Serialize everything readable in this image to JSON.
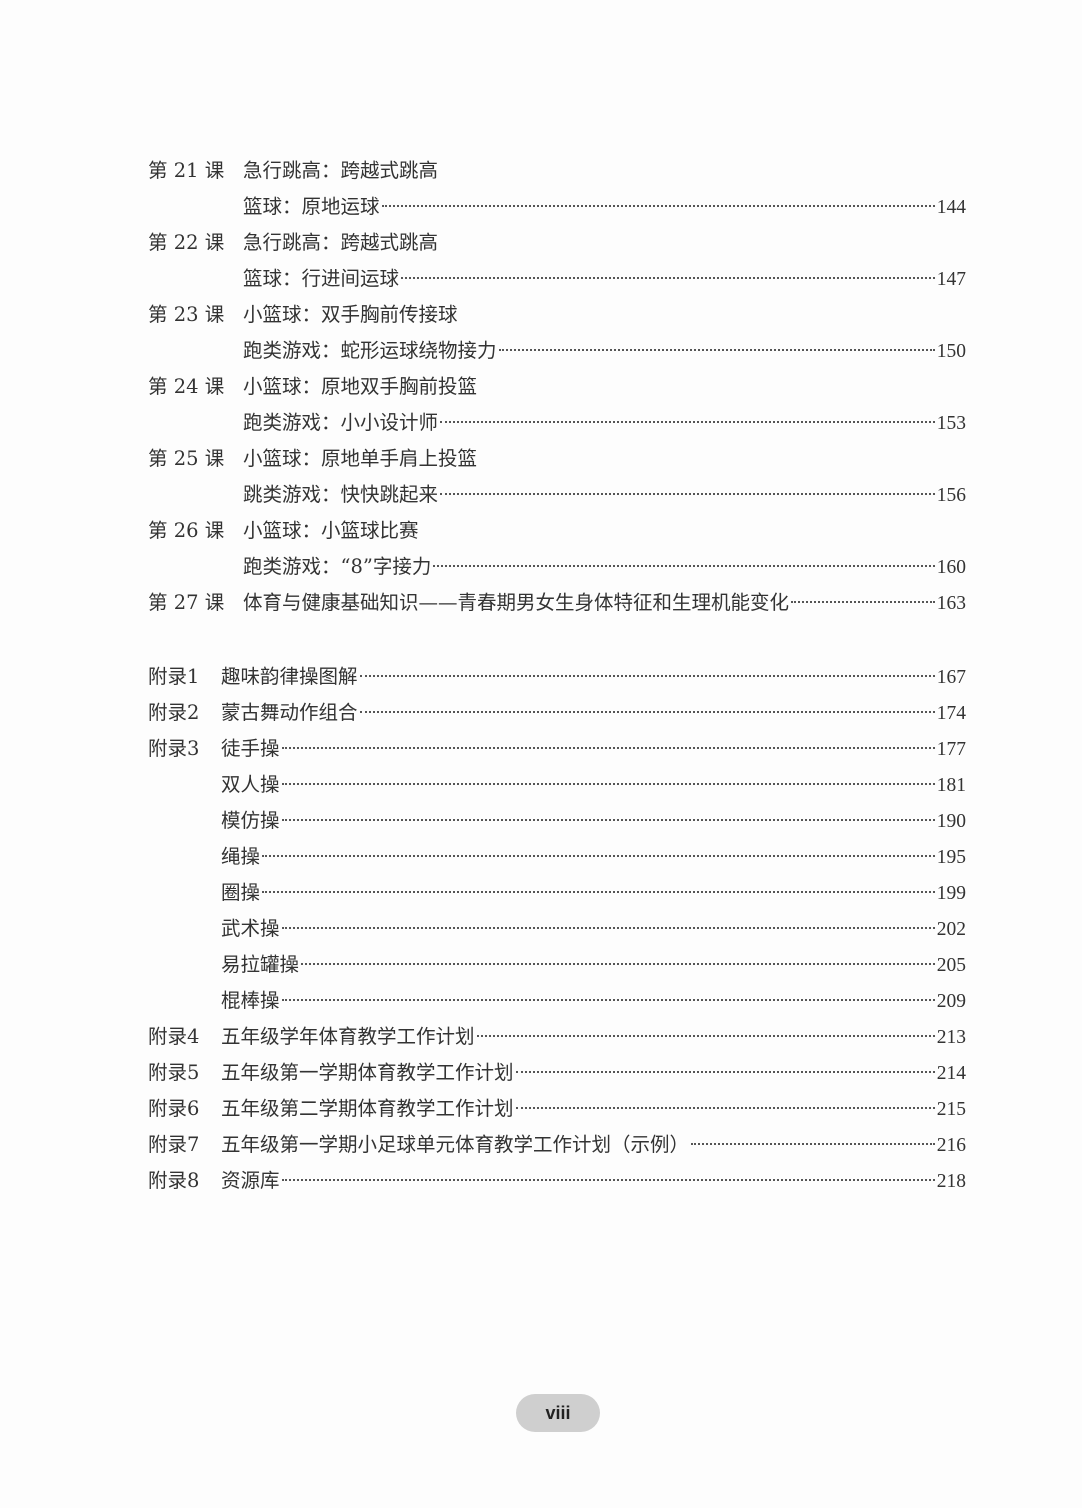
{
  "lessons": [
    {
      "label": "第 21 课",
      "lines": [
        {
          "title": "急行跳高：跨越式跳高",
          "page": ""
        },
        {
          "title": "篮球：原地运球",
          "page": "144"
        }
      ]
    },
    {
      "label": "第 22 课",
      "lines": [
        {
          "title": "急行跳高：跨越式跳高",
          "page": ""
        },
        {
          "title": "篮球：行进间运球",
          "page": "147"
        }
      ]
    },
    {
      "label": "第 23 课",
      "lines": [
        {
          "title": "小篮球：双手胸前传接球",
          "page": ""
        },
        {
          "title": "跑类游戏：蛇形运球绕物接力",
          "page": "150"
        }
      ]
    },
    {
      "label": "第 24 课",
      "lines": [
        {
          "title": "小篮球：原地双手胸前投篮",
          "page": ""
        },
        {
          "title": "跑类游戏：小小设计师",
          "page": "153"
        }
      ]
    },
    {
      "label": "第 25 课",
      "lines": [
        {
          "title": "小篮球：原地单手肩上投篮",
          "page": ""
        },
        {
          "title": "跳类游戏：快快跳起来",
          "page": "156"
        }
      ]
    },
    {
      "label": "第 26 课",
      "lines": [
        {
          "title": "小篮球：小篮球比赛",
          "page": ""
        },
        {
          "title": "跑类游戏：“8”字接力",
          "page": "160"
        }
      ]
    },
    {
      "label": "第 27 课",
      "lines": [
        {
          "title": "体育与健康基础知识——青春期男女生身体特征和生理机能变化",
          "page": "163"
        }
      ]
    }
  ],
  "appendices": [
    {
      "label": "附录1",
      "items": [
        {
          "title": "趣味韵律操图解",
          "page": "167"
        }
      ]
    },
    {
      "label": "附录2",
      "items": [
        {
          "title": "蒙古舞动作组合",
          "page": "174"
        }
      ]
    },
    {
      "label": "附录3",
      "items": [
        {
          "title": "徒手操",
          "page": "177"
        },
        {
          "title": "双人操",
          "page": "181"
        },
        {
          "title": "模仿操",
          "page": "190"
        },
        {
          "title": "绳操",
          "page": "195"
        },
        {
          "title": "圈操",
          "page": "199"
        },
        {
          "title": "武术操",
          "page": "202"
        },
        {
          "title": "易拉罐操",
          "page": "205"
        },
        {
          "title": "棍棒操",
          "page": "209"
        }
      ]
    },
    {
      "label": "附录4",
      "items": [
        {
          "title": "五年级学年体育教学工作计划",
          "page": "213"
        }
      ]
    },
    {
      "label": "附录5",
      "items": [
        {
          "title": "五年级第一学期体育教学工作计划",
          "page": "214"
        }
      ]
    },
    {
      "label": "附录6",
      "items": [
        {
          "title": "五年级第二学期体育教学工作计划",
          "page": "215"
        }
      ]
    },
    {
      "label": "附录7",
      "items": [
        {
          "title": "五年级第一学期小足球单元体育教学工作计划（示例）",
          "page": "216"
        }
      ]
    },
    {
      "label": "附录8",
      "items": [
        {
          "title": "资源库",
          "page": "218"
        }
      ]
    }
  ],
  "footer": {
    "page_number": "viii"
  }
}
